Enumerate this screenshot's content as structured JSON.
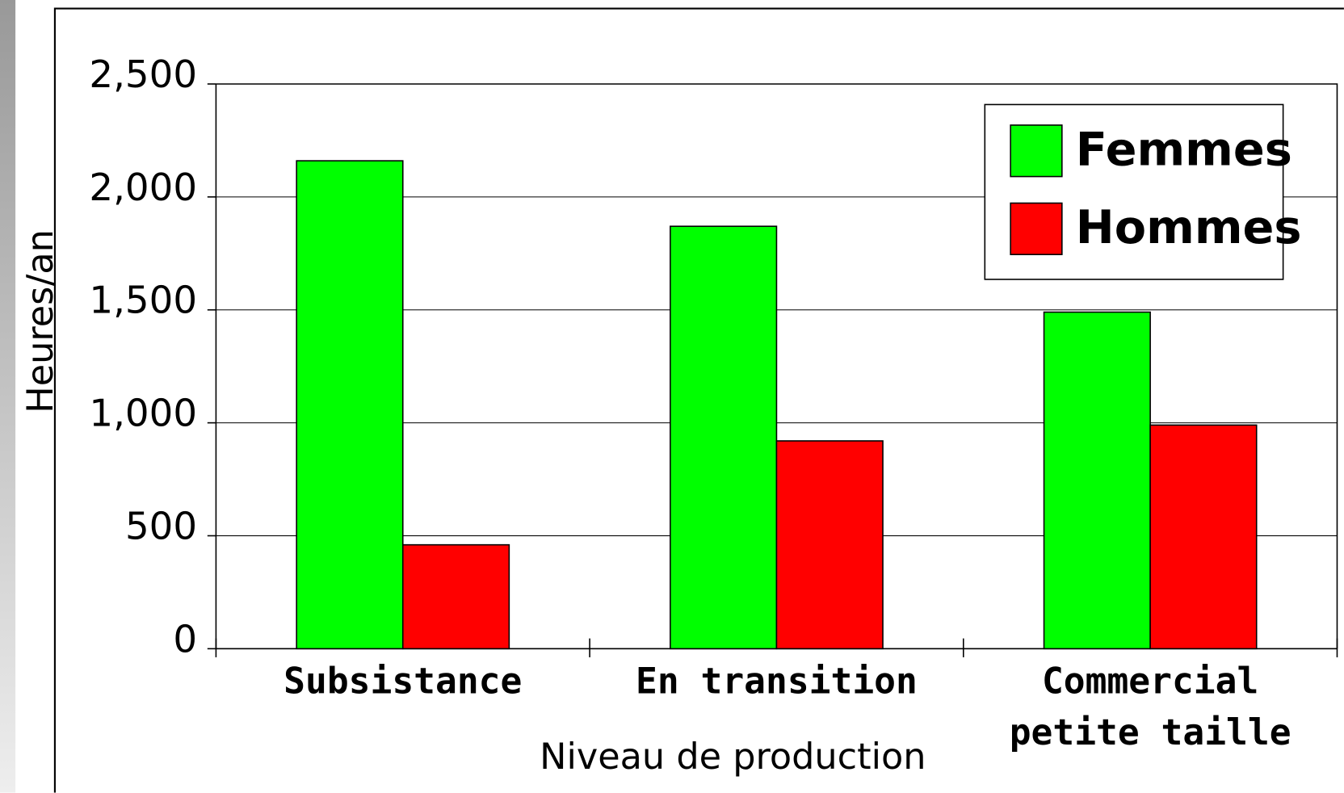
{
  "chart_data": {
    "type": "bar",
    "categories": [
      "Subsistance",
      "En transition",
      "Commercial petite taille"
    ],
    "series": [
      {
        "name": "Femmes",
        "color": "#00ff00",
        "values": [
          2160,
          1870,
          1490
        ]
      },
      {
        "name": "Hommes",
        "color": "#ff0000",
        "values": [
          460,
          920,
          990
        ]
      }
    ],
    "ylabel": "Heures/an",
    "xlabel": "Niveau de production",
    "ylim": [
      0,
      2500
    ],
    "yticks": [
      0,
      500,
      {
        "value": 1000,
        "label": "1,000"
      },
      {
        "value": 1500,
        "label": "1,500"
      },
      {
        "value": 2000,
        "label": "2,000"
      },
      {
        "value": 2500,
        "label": "2,500"
      }
    ],
    "grid": true,
    "legend": "top-right"
  }
}
